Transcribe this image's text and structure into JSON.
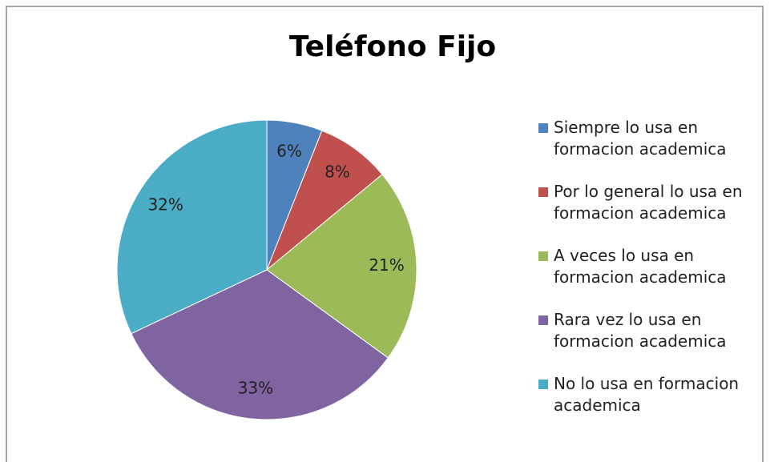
{
  "chart_data": {
    "type": "pie",
    "title": "Teléfono Fijo",
    "categories": [
      "Siempre lo usa en formacion academica",
      "Por lo general lo usa en formacion academica",
      "A veces lo usa en formacion academica",
      "Rara vez lo usa en formacion academica",
      "No lo usa en formacion academica"
    ],
    "values": [
      6,
      8,
      21,
      33,
      32
    ],
    "value_labels": [
      "6%",
      "8%",
      "21%",
      "33%",
      "32%"
    ],
    "colors": [
      "#4f81bd",
      "#c0504d",
      "#9bbb59",
      "#8064a2",
      "#4bacc6"
    ],
    "legend": "right"
  }
}
